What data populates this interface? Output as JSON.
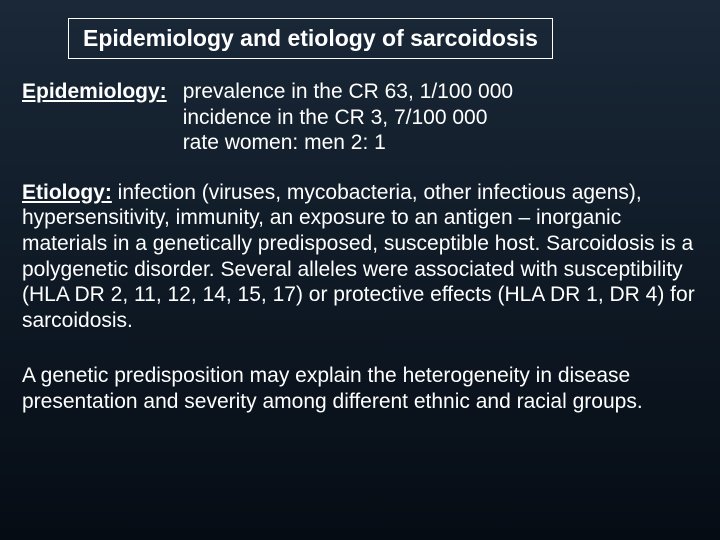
{
  "colors": {
    "bg_top": "#1a2838",
    "bg_mid": "#0f1a26",
    "bg_bottom": "#060c14",
    "text": "#ffffff",
    "border": "#ffffff"
  },
  "typography": {
    "title_fontsize": 23,
    "body_fontsize": 21,
    "title_weight": "bold",
    "label_weight": "bold",
    "font_family": "Tahoma, Verdana, sans-serif"
  },
  "title": "Epidemiology and etiology of sarcoidosis",
  "epidemiology": {
    "label": "Epidemiology:",
    "lines": [
      "prevalence in the CR 63, 1/100 000",
      "incidence in the CR 3, 7/100 000",
      "rate women: men 2: 1"
    ]
  },
  "etiology": {
    "label": "Etiology:",
    "text": " infection (viruses, mycobacteria, other infectious agens), hypersensitivity, immunity, an exposure to an antigen – inorganic materials in a genetically predisposed, susceptible host. Sarcoidosis is a polygenetic disorder. Several alleles were associated with susceptibility (HLA DR 2, 11, 12, 14, 15, 17) or protective effects (HLA DR 1, DR 4) for sarcoidosis."
  },
  "genetic_note": "A genetic predisposition may explain the heterogeneity in disease presentation and severity among different ethnic and racial groups."
}
